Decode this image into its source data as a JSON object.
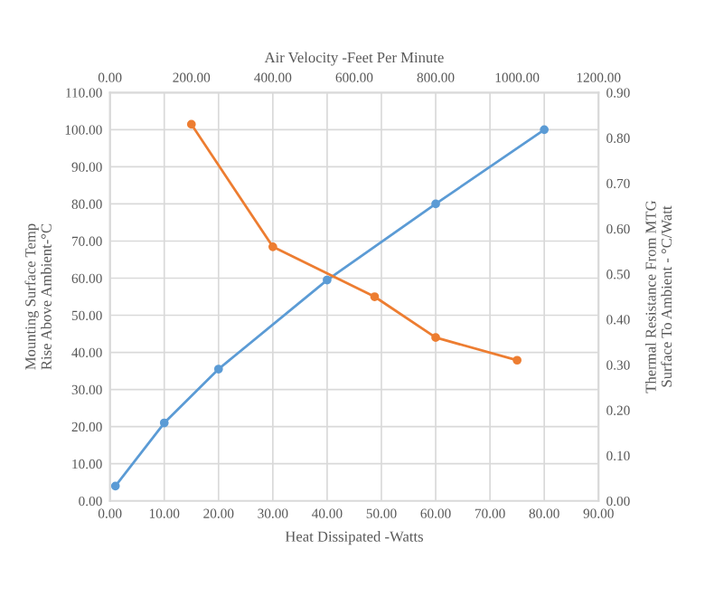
{
  "chart_data": [
    {
      "type": "line",
      "xlabel": "Heat Dissipated -Watts",
      "ylabel": "Mounting Surface Temp\nRise Above Ambient-°C",
      "series": [
        {
          "color": "#5b9bd5",
          "x": [
            1,
            10,
            20,
            40,
            60,
            80
          ],
          "values": [
            4,
            21,
            35.5,
            59.5,
            80,
            100
          ]
        }
      ],
      "xlim": [
        0,
        90
      ],
      "xticks": [
        {
          "value": 0,
          "label": "0.00"
        },
        {
          "value": 10,
          "label": "10.00"
        },
        {
          "value": 20,
          "label": "20.00"
        },
        {
          "value": 30,
          "label": "30.00"
        },
        {
          "value": 40,
          "label": "40.00"
        },
        {
          "value": 50,
          "label": "50.00"
        },
        {
          "value": 60,
          "label": "60.00"
        },
        {
          "value": 70,
          "label": "70.00"
        },
        {
          "value": 80,
          "label": "80.00"
        },
        {
          "value": 90,
          "label": "90.00"
        }
      ],
      "ylim": [
        0,
        110
      ],
      "yticks": [
        {
          "value": 0,
          "label": "0.00"
        },
        {
          "value": 10,
          "label": "10.00"
        },
        {
          "value": 20,
          "label": "20.00"
        },
        {
          "value": 30,
          "label": "30.00"
        },
        {
          "value": 40,
          "label": "40.00"
        },
        {
          "value": 50,
          "label": "50.00"
        },
        {
          "value": 60,
          "label": "60.00"
        },
        {
          "value": 70,
          "label": "70.00"
        },
        {
          "value": 80,
          "label": "80.00"
        },
        {
          "value": 90,
          "label": "90.00"
        },
        {
          "value": 100,
          "label": "100.00"
        },
        {
          "value": 110,
          "label": "110.00"
        }
      ],
      "grid": true,
      "marker": "circle",
      "line_style": "solid"
    },
    {
      "type": "line",
      "xlabel": "Air Velocity -Feet Per Minute",
      "ylabel": "Thermal Resistance From MTG\nSurface To Ambient - °C/Watt",
      "series": [
        {
          "color": "#ed7d31",
          "x": [
            200,
            400,
            650,
            800,
            1000
          ],
          "values": [
            0.83,
            0.56,
            0.45,
            0.36,
            0.31
          ]
        }
      ],
      "xlim": [
        0,
        1200
      ],
      "xticks": [
        {
          "value": 0,
          "label": "0.00"
        },
        {
          "value": 200,
          "label": "200.00"
        },
        {
          "value": 400,
          "label": "400.00"
        },
        {
          "value": 600,
          "label": "600.00"
        },
        {
          "value": 800,
          "label": "800.00"
        },
        {
          "value": 1000,
          "label": "1000.00"
        },
        {
          "value": 1200,
          "label": "1200.00"
        }
      ],
      "ylim": [
        0,
        0.9
      ],
      "yticks": [
        {
          "value": 0,
          "label": "0.00"
        },
        {
          "value": 0.1,
          "label": "0.10"
        },
        {
          "value": 0.2,
          "label": "0.20"
        },
        {
          "value": 0.3,
          "label": "0.30"
        },
        {
          "value": 0.4,
          "label": "0.40"
        },
        {
          "value": 0.5,
          "label": "0.50"
        },
        {
          "value": 0.6,
          "label": "0.60"
        },
        {
          "value": 0.7,
          "label": "0.70"
        },
        {
          "value": 0.8,
          "label": "0.80"
        },
        {
          "value": 0.9,
          "label": "0.90"
        }
      ],
      "marker": "circle",
      "line_style": "solid"
    }
  ]
}
